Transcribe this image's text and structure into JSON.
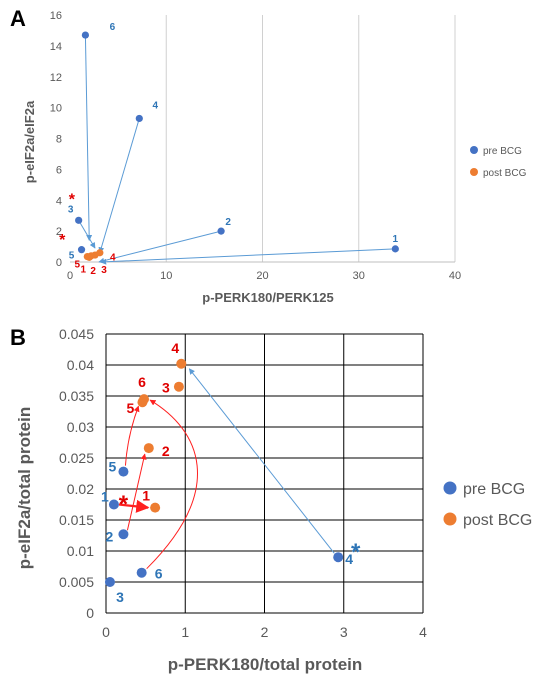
{
  "colors": {
    "pre": "#4472C4",
    "post": "#ED7D31",
    "label_blue": "#2E75B6",
    "label_red": "#E00000",
    "arrow_blue": "#5B9BD5",
    "arrow_red": "#FF2020",
    "grid": "#D0D0D0"
  },
  "chart_data": [
    {
      "panel": "A",
      "type": "scatter",
      "xlabel": "p-PERK180/PERK125",
      "ylabel": "p-eIF2a/eIF2a",
      "xlim": [
        0,
        40
      ],
      "ylim": [
        0,
        16
      ],
      "xticks": [
        "0",
        "10",
        "20",
        "30",
        "40"
      ],
      "yticks": [
        "0",
        "2",
        "4",
        "6",
        "8",
        "10",
        "12",
        "14",
        "16"
      ],
      "grid": "vertical",
      "legend_position": "right",
      "series": [
        {
          "name": "pre BCG",
          "color": "#4472C4",
          "points": [
            {
              "x": 33.8,
              "y": 0.85,
              "label": "1"
            },
            {
              "x": 15.7,
              "y": 2.0,
              "label": "2"
            },
            {
              "x": 0.9,
              "y": 2.7,
              "label": "3"
            },
            {
              "x": 7.2,
              "y": 9.3,
              "label": "4"
            },
            {
              "x": 1.2,
              "y": 0.8,
              "label": "5"
            },
            {
              "x": 1.6,
              "y": 14.7,
              "label": "6"
            }
          ]
        },
        {
          "name": "post BCG",
          "color": "#ED7D31",
          "points": [
            {
              "x": 1.8,
              "y": 0.35,
              "label": "1"
            },
            {
              "x": 2.2,
              "y": 0.4,
              "label": "2"
            },
            {
              "x": 2.6,
              "y": 0.45,
              "label": "3"
            },
            {
              "x": 3.1,
              "y": 0.6,
              "label": "4"
            },
            {
              "x": 2.0,
              "y": 0.3,
              "label": "5"
            }
          ]
        }
      ],
      "arrows": [
        {
          "from": [
            33.8,
            0.85
          ],
          "to": [
            3.2,
            0.0
          ]
        },
        {
          "from": [
            15.7,
            2.0
          ],
          "to": [
            3.0,
            0.0
          ]
        },
        {
          "from": [
            7.2,
            9.3
          ],
          "to": [
            3.1,
            0.6
          ]
        },
        {
          "from": [
            1.6,
            14.7
          ],
          "to": [
            2.0,
            1.4
          ]
        },
        {
          "from": [
            0.9,
            2.7
          ],
          "to": [
            2.6,
            0.9
          ]
        }
      ],
      "annotations": [
        {
          "text": "*",
          "x": 0.2,
          "y": 4.1,
          "color": "red"
        },
        {
          "text": "*",
          "x": -0.8,
          "y": 1.5,
          "color": "red"
        }
      ]
    },
    {
      "panel": "B",
      "type": "scatter",
      "xlabel": "p-PERK180/total protein",
      "ylabel": "p-eIF2a/total protein",
      "xlim": [
        0,
        4
      ],
      "ylim": [
        0,
        0.045
      ],
      "xticks": [
        "0",
        "1",
        "2",
        "3",
        "4"
      ],
      "yticks": [
        "0",
        "0.005",
        "0.01",
        "0.015",
        "0.02",
        "0.025",
        "0.03",
        "0.035",
        "0.04",
        "0.045"
      ],
      "grid": "both",
      "legend_position": "right",
      "series": [
        {
          "name": "pre BCG",
          "color": "#4472C4",
          "points": [
            {
              "x": 0.1,
              "y": 0.0175,
              "label": "1"
            },
            {
              "x": 0.22,
              "y": 0.0127,
              "label": "2"
            },
            {
              "x": 0.05,
              "y": 0.005,
              "label": "3"
            },
            {
              "x": 2.93,
              "y": 0.009,
              "label": "4"
            },
            {
              "x": 0.22,
              "y": 0.0228,
              "label": "5"
            },
            {
              "x": 0.45,
              "y": 0.0065,
              "label": "6"
            }
          ]
        },
        {
          "name": "post BCG",
          "color": "#ED7D31",
          "points": [
            {
              "x": 0.62,
              "y": 0.017,
              "label": "1"
            },
            {
              "x": 0.54,
              "y": 0.0266,
              "label": "2"
            },
            {
              "x": 0.92,
              "y": 0.0365,
              "label": "3"
            },
            {
              "x": 0.95,
              "y": 0.0402,
              "label": "4"
            },
            {
              "x": 0.46,
              "y": 0.034,
              "label": "5"
            },
            {
              "x": 0.48,
              "y": 0.0345,
              "label": "6"
            }
          ]
        }
      ],
      "annotations": [
        {
          "text": "*",
          "x": 0.22,
          "y": 0.0182,
          "color": "red"
        },
        {
          "text": "*",
          "x": 3.15,
          "y": 0.0105,
          "color": "blue"
        }
      ]
    }
  ]
}
